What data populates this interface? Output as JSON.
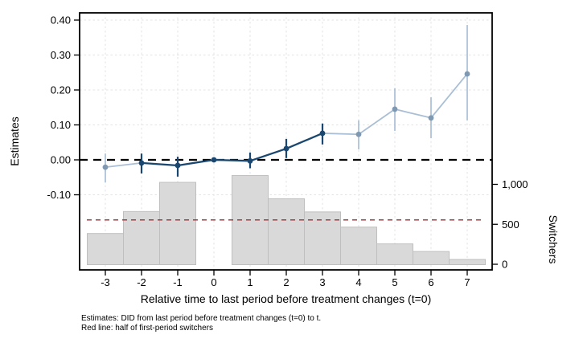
{
  "figure": {
    "background": "#ffffff"
  },
  "chart_data": {
    "type": "line",
    "subtype": "event-study estimates with switchers histogram",
    "title": "",
    "xlabel": "Relative time to last period before treatment changes (t=0)",
    "ylabel_left": "Estimates",
    "ylabel_right": "Switchers",
    "notes": [
      "Estimates: DID from last period before treatment changes (t=0) to t.",
      "Red line: half of first-period switchers"
    ],
    "legend": "none",
    "grid": true,
    "xlim": [
      -3.7,
      7.7
    ],
    "ylim_left": [
      -0.31,
      0.42
    ],
    "ylim_right_ticks_shown": [
      0,
      1000
    ],
    "x_ticks": [
      {
        "v": -3,
        "label": "-3"
      },
      {
        "v": -2,
        "label": "-2"
      },
      {
        "v": -1,
        "label": "-1"
      },
      {
        "v": 0,
        "label": "0"
      },
      {
        "v": 1,
        "label": "1"
      },
      {
        "v": 2,
        "label": "2"
      },
      {
        "v": 3,
        "label": "3"
      },
      {
        "v": 4,
        "label": "4"
      },
      {
        "v": 5,
        "label": "5"
      },
      {
        "v": 6,
        "label": "6"
      },
      {
        "v": 7,
        "label": "7"
      }
    ],
    "yticks_left": [
      {
        "v": 0.4,
        "label": "0.40"
      },
      {
        "v": 0.3,
        "label": "0.30"
      },
      {
        "v": 0.2,
        "label": "0.20"
      },
      {
        "v": 0.1,
        "label": "0.10"
      },
      {
        "v": 0.0,
        "label": "0.00"
      },
      {
        "v": -0.1,
        "label": "-0.10"
      }
    ],
    "yticks_right": [
      {
        "v": 0,
        "label": "0"
      },
      {
        "v": 500,
        "label": "500"
      },
      {
        "v": 1000,
        "label": "1,000"
      }
    ],
    "series": [
      {
        "name": "DID estimates with 95% CI",
        "points": [
          {
            "t": -3,
            "est": -0.021,
            "lo": -0.065,
            "hi": 0.018,
            "tone": "light"
          },
          {
            "t": -2,
            "est": -0.009,
            "lo": -0.039,
            "hi": 0.018,
            "tone": "dark"
          },
          {
            "t": -1,
            "est": -0.016,
            "lo": -0.048,
            "hi": 0.009,
            "tone": "dark"
          },
          {
            "t": 0,
            "est": 0.0,
            "lo": null,
            "hi": null,
            "tone": "dark"
          },
          {
            "t": 1,
            "est": -0.003,
            "lo": -0.024,
            "hi": 0.021,
            "tone": "dark"
          },
          {
            "t": 2,
            "est": 0.032,
            "lo": 0.005,
            "hi": 0.06,
            "tone": "dark"
          },
          {
            "t": 3,
            "est": 0.076,
            "lo": 0.044,
            "hi": 0.104,
            "tone": "dark"
          },
          {
            "t": 4,
            "est": 0.073,
            "lo": 0.03,
            "hi": 0.113,
            "tone": "light"
          },
          {
            "t": 5,
            "est": 0.145,
            "lo": 0.083,
            "hi": 0.205,
            "tone": "light"
          },
          {
            "t": 6,
            "est": 0.12,
            "lo": 0.062,
            "hi": 0.179,
            "tone": "light"
          },
          {
            "t": 7,
            "est": 0.246,
            "lo": 0.113,
            "hi": 0.386,
            "tone": "light"
          }
        ]
      }
    ],
    "histogram": {
      "name": "Switchers",
      "categories": [
        -3,
        -2,
        -1,
        1,
        2,
        3,
        4,
        5,
        6,
        7
      ],
      "values": [
        385,
        660,
        1025,
        1110,
        820,
        655,
        465,
        255,
        160,
        60
      ]
    },
    "reference_lines": [
      {
        "name": "zero line",
        "axis": "left",
        "value": 0,
        "color": "#000000",
        "dash": "long"
      },
      {
        "name": "half of first-period switchers",
        "axis": "right",
        "value": 555,
        "color": "#9d2e33",
        "dash": "short"
      }
    ],
    "colors": {
      "dark": "#1a476f",
      "light_line": "#aabfd5",
      "light_marker": "#7f99b3",
      "bar_fill": "#d9d9d9",
      "bar_stroke": "#bfbfbf",
      "grid": "#e3e3e3",
      "red": "#9d2e33",
      "black": "#000000"
    }
  }
}
